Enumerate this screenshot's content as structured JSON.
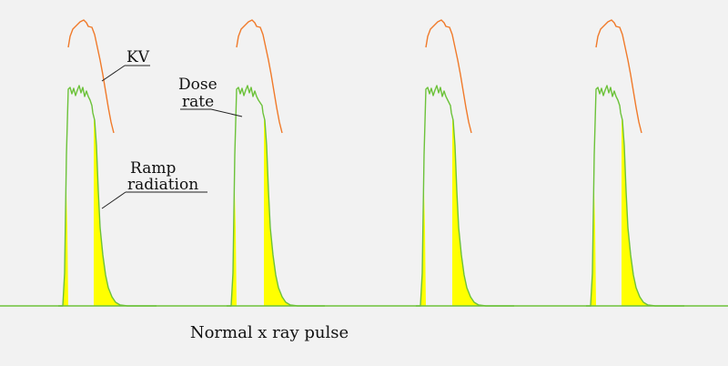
{
  "diagram": {
    "caption": "Normal x ray pulse",
    "labels": {
      "kv": "KV",
      "dose_line1": "Dose",
      "dose_line2": "rate",
      "ramp_line1": "Ramp",
      "ramp_line2": "radiation"
    },
    "colors": {
      "background": "#f2f2f2",
      "kv_curve": "#f07a2a",
      "dose_rate_curve": "#6cc23a",
      "ramp_fill": "#ffff00",
      "baseline": "#6cc23a",
      "leader_line": "#222222",
      "text": "#111111"
    },
    "pulse_count": 4
  }
}
